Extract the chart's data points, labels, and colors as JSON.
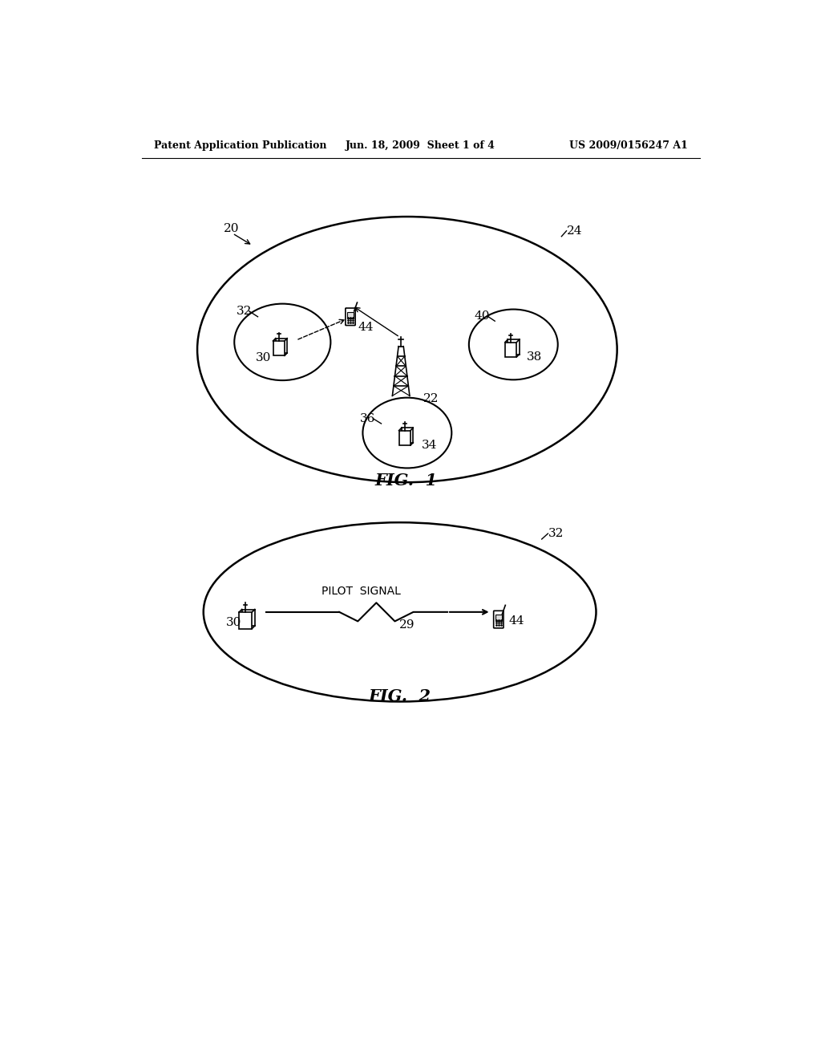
{
  "header_left": "Patent Application Publication",
  "header_mid": "Jun. 18, 2009  Sheet 1 of 4",
  "header_right": "US 2009/0156247 A1",
  "fig1_title": "FIG.  1",
  "fig2_title": "FIG.  2",
  "bg_color": "#ffffff",
  "line_color": "#000000"
}
